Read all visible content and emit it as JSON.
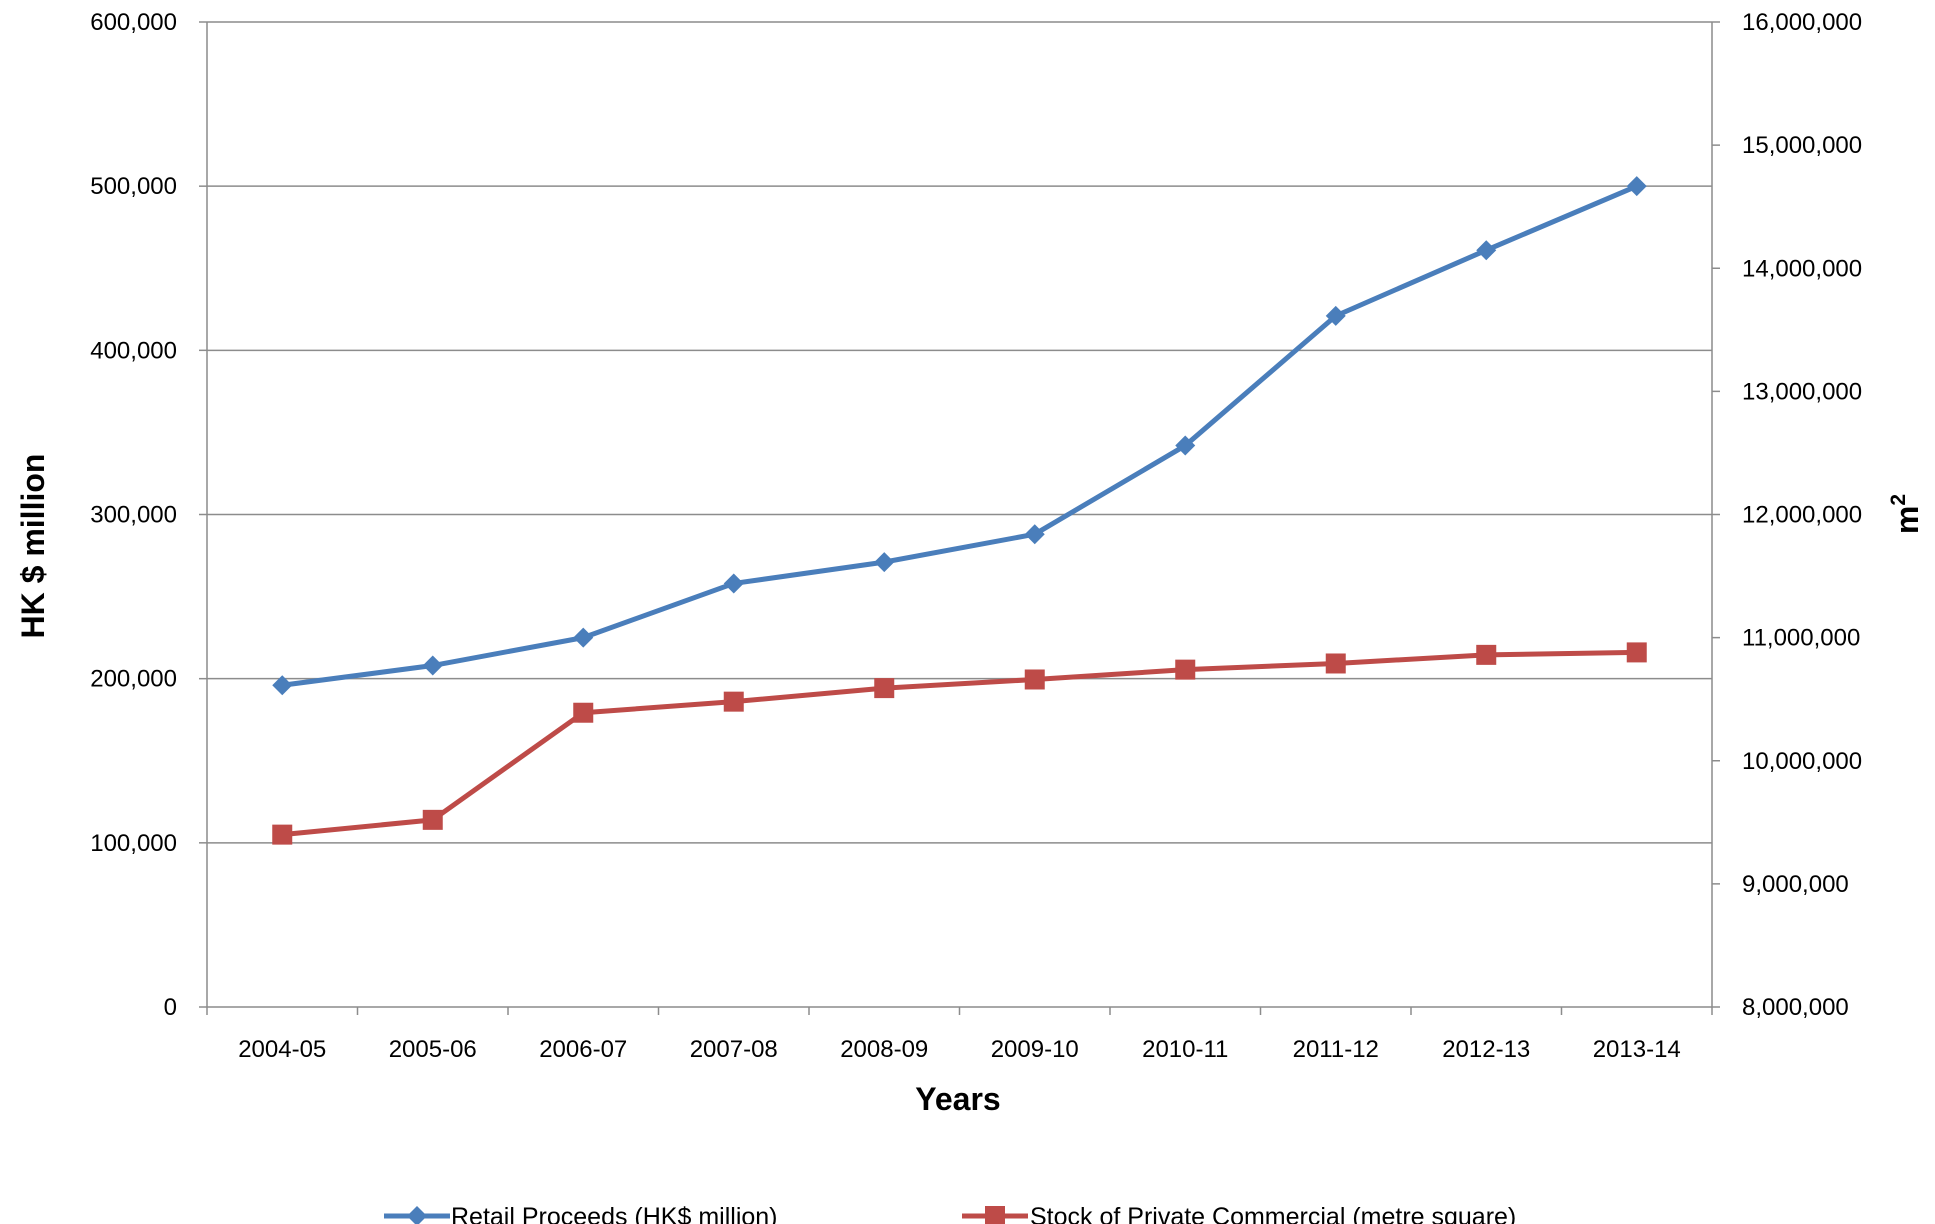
{
  "chart_data": {
    "type": "line",
    "categories": [
      "2004-05",
      "2005-06",
      "2006-07",
      "2007-08",
      "2008-09",
      "2009-10",
      "2010-11",
      "2011-12",
      "2012-13",
      "2013-14"
    ],
    "series": [
      {
        "name": "Retail Proceeds (HK$ million)",
        "axis": "left",
        "color": "#4a7ebb",
        "marker": "diamond",
        "values": [
          196000,
          208000,
          225000,
          258000,
          271000,
          288000,
          342000,
          421000,
          461000,
          500000
        ]
      },
      {
        "name": "Stock of Private Commercial (metre square)",
        "axis": "right",
        "color": "#be4b48",
        "marker": "square",
        "values": [
          9400000,
          9520000,
          10390000,
          10480000,
          10590000,
          10660000,
          10740000,
          10790000,
          10860000,
          10880000
        ]
      }
    ],
    "xlabel": "Years",
    "ylabel_left": "HK $ million",
    "ylabel_right": "m",
    "ylabel_right_sup": "2",
    "ylim_left": [
      0,
      600000
    ],
    "ylim_right": [
      8000000,
      16000000
    ],
    "yticks_left": [
      "0",
      "100,000",
      "200,000",
      "300,000",
      "400,000",
      "500,000",
      "600,000"
    ],
    "yticks_right": [
      "8,000,000",
      "9,000,000",
      "10,000,000",
      "11,000,000",
      "12,000,000",
      "13,000,000",
      "14,000,000",
      "15,000,000",
      "16,000,000"
    ],
    "grid": "horizontal",
    "legend_position": "bottom"
  }
}
